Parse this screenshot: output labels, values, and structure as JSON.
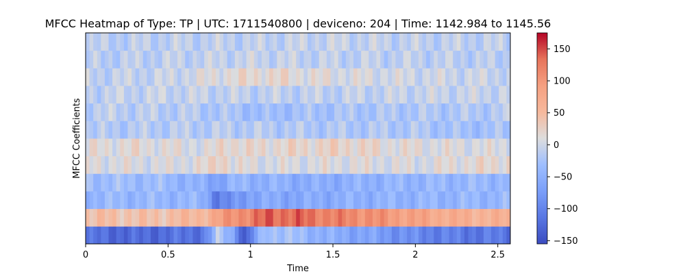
{
  "chart_data": {
    "type": "heatmap",
    "title": "MFCC Heatmap of Type: TP | UTC: 1711540800 | deviceno: 204 | Time: 1142.984 to 1145.56",
    "xlabel": "Time",
    "ylabel": "MFCC Coefficients",
    "xlim": [
      0,
      2.576
    ],
    "x_ticks": [
      0,
      0.5,
      1,
      1.5,
      2,
      2.5
    ],
    "x_tick_labels": [
      "0",
      "0.5",
      "1",
      "1.5",
      "2",
      "2.5"
    ],
    "n_frames": 111,
    "n_coefficients": 12,
    "colormap": "coolwarm",
    "clim": [
      -155,
      175
    ],
    "colorbar_ticks": [
      150,
      100,
      50,
      0,
      -50,
      -100,
      -150
    ],
    "colorbar_tick_labels": [
      "150",
      "100",
      "50",
      "0",
      "−50",
      "−100",
      "−150"
    ],
    "coefficient_profiles": [
      {
        "t": [
          0,
          0.3,
          0.6,
          0.72,
          0.8,
          0.88,
          0.93,
          0.97,
          1.02,
          1.1,
          1.3,
          1.5,
          1.7,
          2.0,
          2.3,
          2.576
        ],
        "v": [
          -120,
          -128,
          -118,
          -112,
          -20,
          -45,
          -95,
          -160,
          -80,
          -20,
          -35,
          -55,
          -65,
          -95,
          -110,
          -112
        ]
      },
      {
        "t": [
          0,
          0.4,
          0.7,
          0.8,
          0.9,
          1.0,
          1.1,
          1.3,
          1.5,
          1.7,
          2.0,
          2.3,
          2.576
        ],
        "v": [
          45,
          40,
          55,
          80,
          110,
          120,
          140,
          135,
          120,
          110,
          85,
          65,
          60
        ]
      },
      {
        "t": [
          0,
          0.5,
          0.72,
          0.8,
          0.88,
          1.0,
          1.3,
          1.6,
          2.0,
          2.3,
          2.576
        ],
        "v": [
          -40,
          -40,
          -45,
          -110,
          -95,
          -60,
          -60,
          -50,
          -45,
          -42,
          -40
        ]
      },
      {
        "t": [
          0,
          0.5,
          0.72,
          0.8,
          0.9,
          1.0,
          1.4,
          1.8,
          2.2,
          2.576
        ],
        "v": [
          -30,
          -35,
          -55,
          -65,
          -45,
          -45,
          -55,
          -45,
          -40,
          -38
        ]
      },
      {
        "t": [
          0,
          0.5,
          0.75,
          0.82,
          0.9,
          1.2,
          1.6,
          2.0,
          2.3,
          2.576
        ],
        "v": [
          10,
          5,
          15,
          35,
          10,
          5,
          10,
          5,
          15,
          20
        ]
      },
      {
        "t": [
          0,
          0.3,
          0.5,
          0.75,
          0.85,
          1.0,
          1.2,
          1.6,
          1.8,
          2.1,
          2.576
        ],
        "v": [
          10,
          15,
          10,
          5,
          25,
          15,
          20,
          25,
          15,
          10,
          5
        ]
      },
      {
        "t": [
          0,
          0.5,
          1.0,
          1.4,
          2.0,
          2.3,
          2.576
        ],
        "v": [
          -20,
          -15,
          -15,
          -20,
          -20,
          -30,
          -25
        ]
      },
      {
        "t": [
          0,
          0.6,
          0.9,
          1.1,
          1.2,
          1.5,
          2.0,
          2.3,
          2.576
        ],
        "v": [
          -10,
          -15,
          -25,
          -35,
          -30,
          -25,
          -20,
          -20,
          -15
        ]
      },
      {
        "t": [
          0,
          0.5,
          1.0,
          1.5,
          2.0,
          2.576
        ],
        "v": [
          -10,
          -5,
          -10,
          -10,
          -5,
          -5
        ]
      },
      {
        "t": [
          0,
          0.5,
          0.8,
          0.9,
          1.1,
          1.4,
          1.7,
          2.0,
          2.576
        ],
        "v": [
          -10,
          -5,
          10,
          15,
          20,
          10,
          5,
          0,
          -5
        ]
      },
      {
        "t": [
          0,
          0.5,
          1.0,
          1.5,
          2.0,
          2.576
        ],
        "v": [
          -15,
          -10,
          -5,
          -10,
          -10,
          -15
        ]
      },
      {
        "t": [
          0,
          0.5,
          1.0,
          1.5,
          2.0,
          2.576
        ],
        "v": [
          -15,
          -10,
          -10,
          -5,
          -10,
          -10
        ]
      }
    ]
  }
}
